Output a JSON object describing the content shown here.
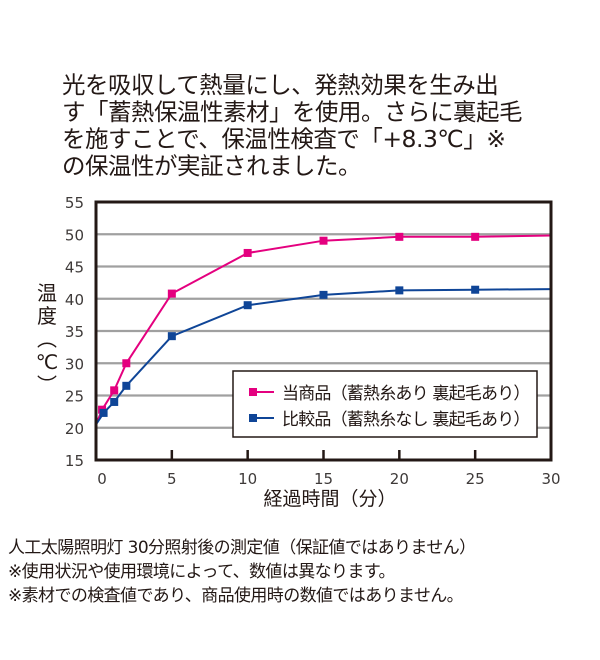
{
  "intro": {
    "lines": [
      "光を吸収して熱量にし、発熱効果を生み出",
      "す「蓄熱保温性素材」を使用。さらに裏起毛",
      "を施すことで、保温性検査で「+8.3℃」※",
      "の保温性が実証されました。"
    ]
  },
  "chart_data": {
    "type": "line",
    "title": "",
    "xlabel": "経過時間（分）",
    "ylabel": "温度（℃）",
    "xlim": [
      0,
      30
    ],
    "ylim": [
      15,
      55
    ],
    "xticks": [
      0,
      5,
      10,
      15,
      20,
      25,
      30
    ],
    "yticks": [
      15,
      20,
      25,
      30,
      35,
      40,
      45,
      50,
      55
    ],
    "grid": "horizontal",
    "legend_position": "lower right inside",
    "series": [
      {
        "name": "当商品（蓄熱糸あり 裏起毛あり）",
        "color": "#e4007f",
        "x": [
          0,
          0.4,
          1.2,
          2,
          5,
          10,
          15,
          20,
          25,
          30
        ],
        "y": [
          20.5,
          22.8,
          25.8,
          30.0,
          40.8,
          47.1,
          49.0,
          49.6,
          49.6,
          49.8
        ],
        "markers_at": [
          0.4,
          1.2,
          2,
          5,
          10,
          15,
          20,
          25
        ]
      },
      {
        "name": "比較品（蓄熱糸なし 裏起毛あり）",
        "color": "#0f4597",
        "x": [
          0,
          0.5,
          1.2,
          2,
          5,
          10,
          15,
          20,
          25,
          30
        ],
        "y": [
          20.5,
          22.3,
          24.0,
          26.5,
          34.2,
          39.0,
          40.6,
          41.3,
          41.4,
          41.5
        ],
        "markers_at": [
          0.5,
          1.2,
          2,
          5,
          10,
          15,
          20,
          25
        ]
      }
    ]
  },
  "footer": {
    "lines": [
      "人工太陽照明灯 30分照射後の測定値（保証値ではありません）",
      "※使用状況や使用環境によって、数値は異なります。",
      "※素材での検査値であり、商品使用時の数値ではありません。"
    ]
  }
}
